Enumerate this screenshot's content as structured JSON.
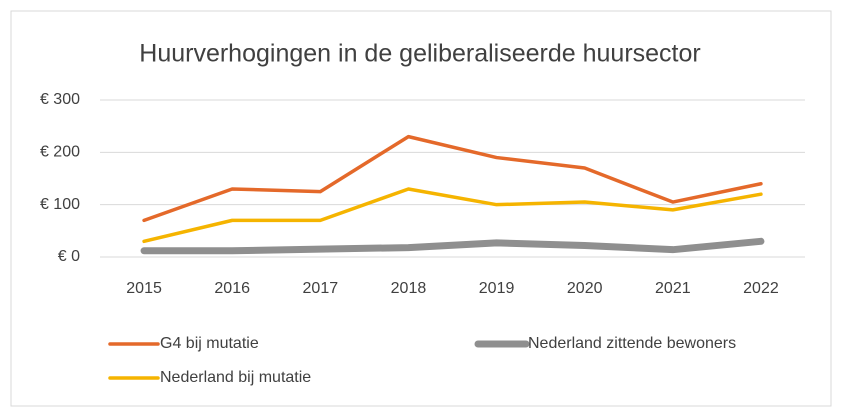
{
  "chart_data": {
    "type": "line",
    "title": "Huurverhogingen in de geliberaliseerde huursector",
    "categories": [
      "2015",
      "2016",
      "2017",
      "2018",
      "2019",
      "2020",
      "2021",
      "2022"
    ],
    "series": [
      {
        "name": "G4 bij mutatie",
        "color": "#e4692a",
        "values": [
          70,
          130,
          125,
          230,
          190,
          170,
          105,
          140
        ]
      },
      {
        "name": "Nederland zittende bewoners",
        "color": "#8f8f8f",
        "values": [
          12,
          12,
          15,
          18,
          27,
          22,
          14,
          30
        ]
      },
      {
        "name": "Nederland bij mutatie",
        "color": "#f5b400",
        "values": [
          30,
          70,
          70,
          130,
          100,
          105,
          90,
          120
        ]
      }
    ],
    "ylim": [
      0,
      300
    ],
    "yticks": [
      {
        "value": 0,
        "label": "€ 0"
      },
      {
        "value": 100,
        "label": "€ 100"
      },
      {
        "value": 200,
        "label": "€ 200"
      },
      {
        "value": 300,
        "label": "€ 300"
      }
    ],
    "grid": true,
    "legend": "bottom"
  }
}
